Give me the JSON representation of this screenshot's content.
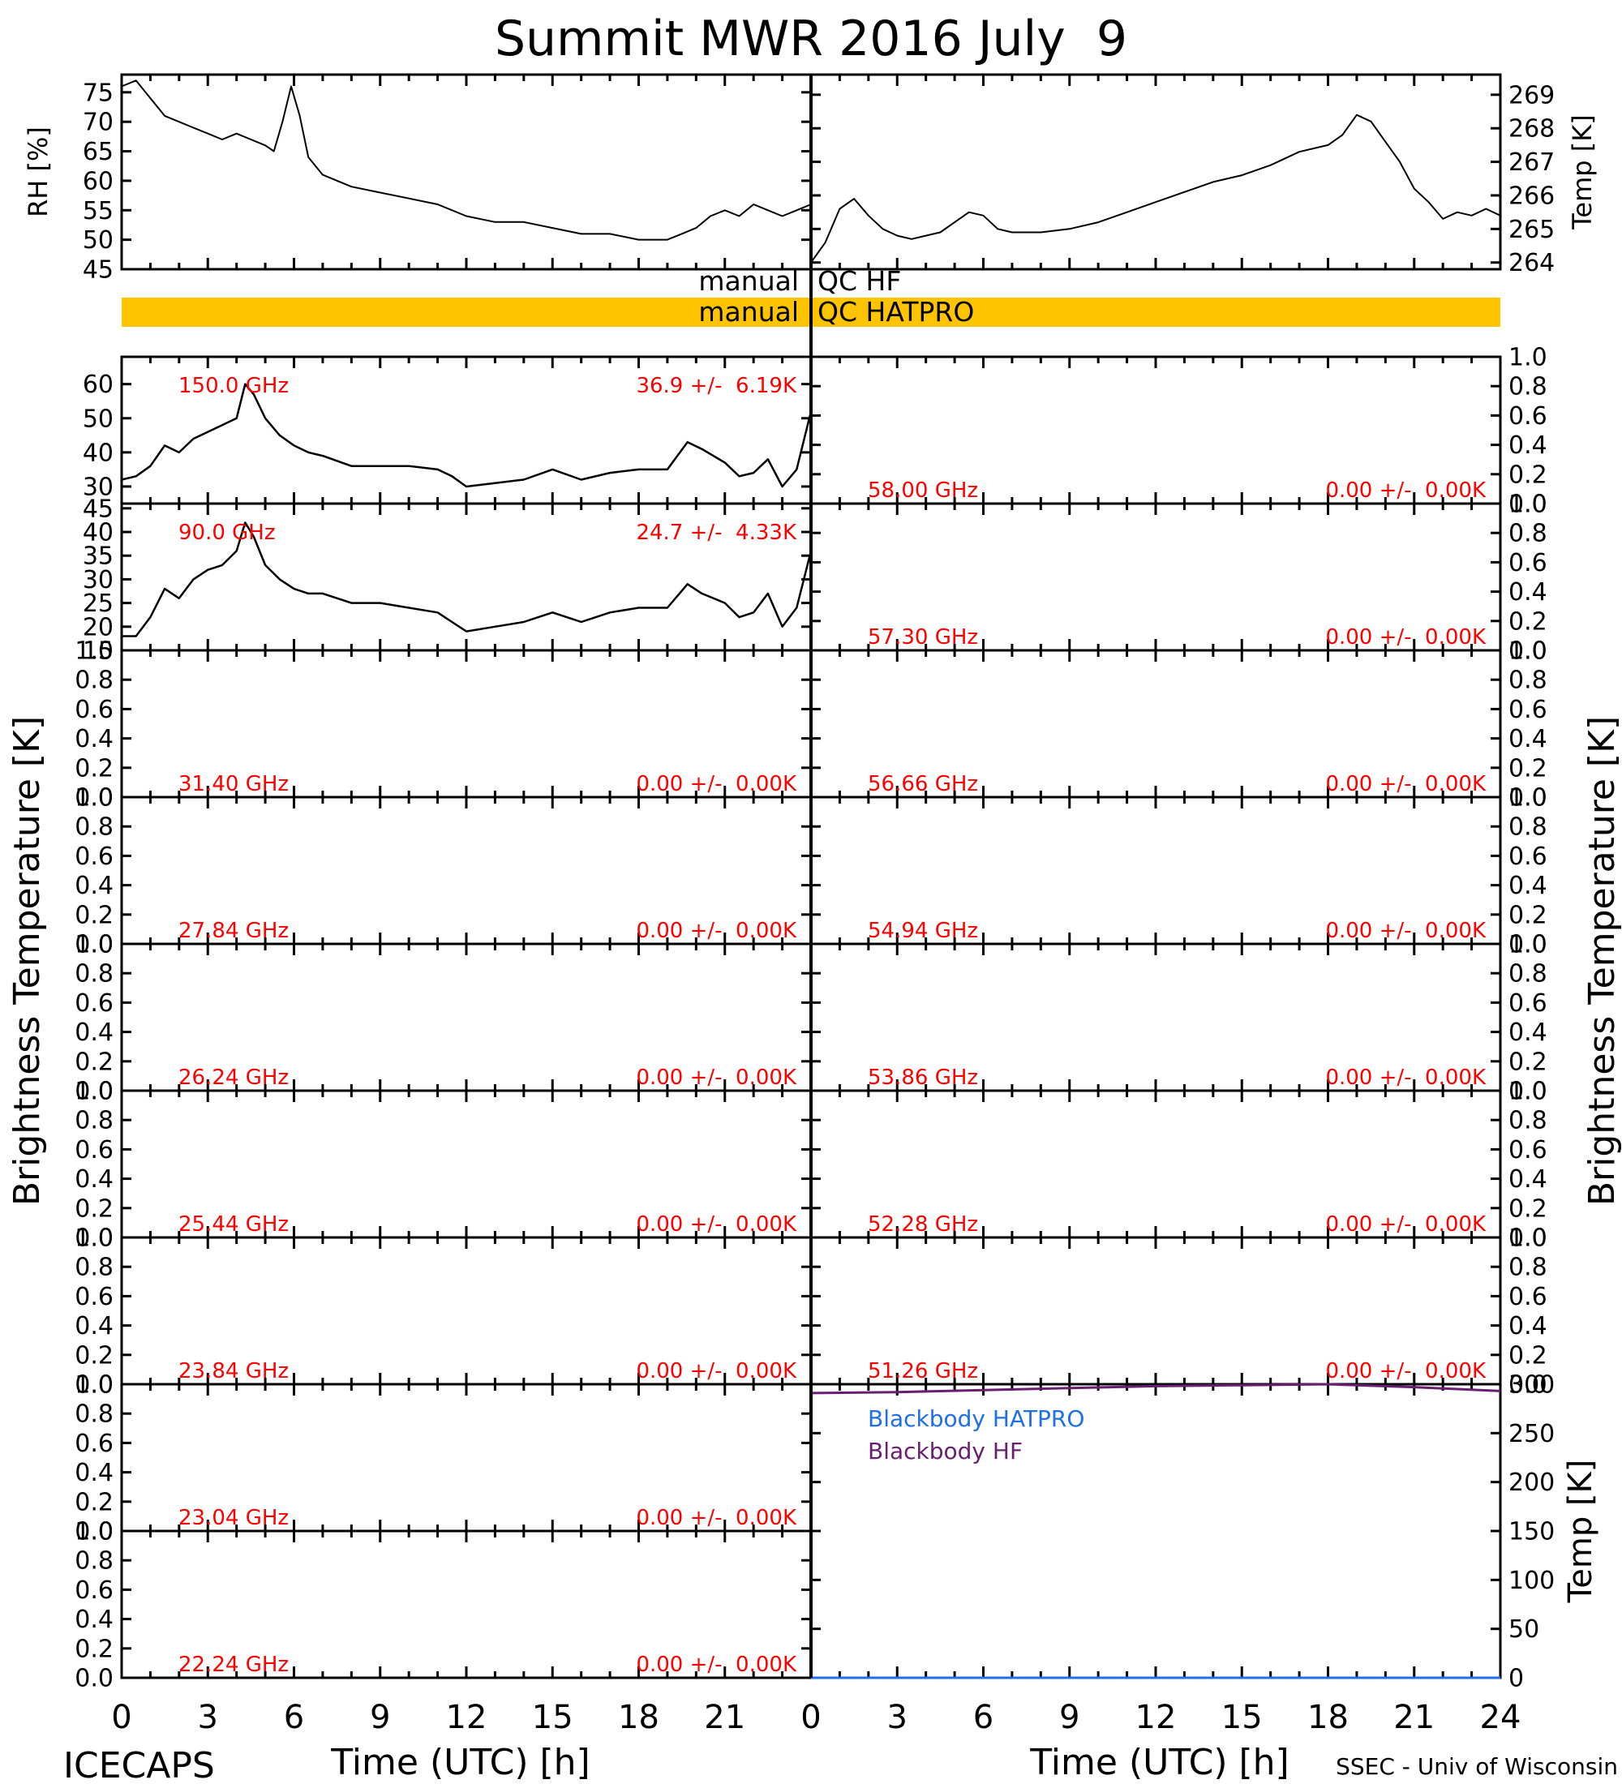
{
  "title": "Summit MWR 2016 July  9",
  "footer": {
    "left": "ICECAPS",
    "right": "SSEC - Univ of Wisconsin",
    "xlabel": "Time (UTC) [h]"
  },
  "colors": {
    "axis": "#000000",
    "trace": "#000000",
    "annotation_red": "#ff0000",
    "qc_bar": "#ffc400",
    "blackbody_hatpro": "#1e6fe8",
    "blackbody_hf": "#6a1e72"
  },
  "qc": {
    "hf_left": "manual",
    "hf_right": "QC HF",
    "hatpro_left": "manual",
    "hatpro_right": "QC HATPRO"
  },
  "side_labels": {
    "left": "Brightness Temperature [K]",
    "right": "Brightness Temperature [K]"
  },
  "chart_data": [
    {
      "type": "line",
      "id": "rh",
      "ylabel": "RH [%]",
      "xlim": [
        0,
        24
      ],
      "ylim": [
        45,
        78
      ],
      "yticks": [
        45,
        50,
        55,
        60,
        65,
        70,
        75
      ],
      "x": [
        0,
        0.5,
        1,
        1.5,
        2,
        2.5,
        3,
        3.5,
        4,
        4.5,
        5,
        5.3,
        5.6,
        5.9,
        6.2,
        6.5,
        7,
        8,
        9,
        10,
        11,
        12,
        13,
        14,
        15,
        16,
        17,
        18,
        18.5,
        19,
        19.5,
        20,
        20.5,
        21,
        21.5,
        22,
        22.5,
        23,
        23.5,
        24
      ],
      "y": [
        76,
        77,
        74,
        71,
        70,
        69,
        68,
        67,
        68,
        67,
        66,
        65,
        70,
        76,
        71,
        64,
        61,
        59,
        58,
        57,
        56,
        54,
        53,
        53,
        52,
        51,
        51,
        50,
        50,
        50,
        51,
        52,
        54,
        55,
        54,
        56,
        55,
        54,
        55,
        56
      ]
    },
    {
      "type": "line",
      "id": "temp",
      "ylabel": "Temp [K]",
      "xlim": [
        0,
        24
      ],
      "ylim": [
        263.8,
        269.6
      ],
      "yticks": [
        264,
        265,
        266,
        267,
        268,
        269
      ],
      "x": [
        0,
        0.5,
        1,
        1.5,
        2,
        2.5,
        3,
        3.5,
        4,
        4.5,
        5,
        5.5,
        6,
        6.5,
        7,
        8,
        9,
        10,
        11,
        12,
        13,
        14,
        15,
        16,
        17,
        18,
        18.5,
        19,
        19.5,
        20,
        20.5,
        21,
        21.5,
        22,
        22.5,
        23,
        23.5,
        24
      ],
      "y": [
        264.0,
        264.6,
        265.6,
        265.9,
        265.4,
        265.0,
        264.8,
        264.7,
        264.8,
        264.9,
        265.2,
        265.5,
        265.4,
        265.0,
        264.9,
        264.9,
        265.0,
        265.2,
        265.5,
        265.8,
        266.1,
        266.4,
        266.6,
        266.9,
        267.3,
        267.5,
        267.8,
        268.4,
        268.2,
        267.6,
        267.0,
        266.2,
        265.8,
        265.3,
        265.5,
        265.4,
        265.6,
        265.4
      ]
    },
    {
      "type": "line",
      "id": "bt-150",
      "channel": "150.0 GHz",
      "stats": "36.9 +/-  6.19K",
      "xlim": [
        0,
        24
      ],
      "ylim": [
        25,
        68
      ],
      "yticks": [
        30,
        40,
        50,
        60
      ],
      "x": [
        0,
        0.5,
        1,
        1.5,
        2,
        2.5,
        3,
        3.5,
        4,
        4.3,
        4.6,
        5,
        5.5,
        6,
        6.5,
        7,
        8,
        9,
        10,
        11,
        11.5,
        12,
        13,
        14,
        15,
        16,
        17,
        18,
        19,
        19.7,
        20.2,
        21,
        21.5,
        22,
        22.5,
        23,
        23.5,
        24
      ],
      "y": [
        32,
        33,
        36,
        42,
        40,
        44,
        46,
        48,
        50,
        60,
        57,
        50,
        45,
        42,
        40,
        39,
        36,
        36,
        36,
        35,
        33,
        30,
        31,
        32,
        35,
        32,
        34,
        35,
        35,
        43,
        41,
        37,
        33,
        34,
        38,
        30,
        35,
        52
      ]
    },
    {
      "type": "line",
      "id": "bt-90",
      "channel": "90.0 GHz",
      "stats": "24.7 +/-  4.33K",
      "xlim": [
        0,
        24
      ],
      "ylim": [
        15,
        46
      ],
      "yticks": [
        15,
        20,
        25,
        30,
        35,
        40,
        45
      ],
      "x": [
        0,
        0.5,
        1,
        1.5,
        2,
        2.5,
        3,
        3.5,
        4,
        4.3,
        4.6,
        5,
        5.5,
        6,
        6.5,
        7,
        8,
        9,
        10,
        11,
        11.5,
        12,
        13,
        14,
        15,
        16,
        17,
        18,
        19,
        19.7,
        20.2,
        21,
        21.5,
        22,
        22.5,
        23,
        23.5,
        24
      ],
      "y": [
        18,
        18,
        22,
        28,
        26,
        30,
        32,
        33,
        36,
        42,
        39,
        33,
        30,
        28,
        27,
        27,
        25,
        25,
        24,
        23,
        21,
        19,
        20,
        21,
        23,
        21,
        23,
        24,
        24,
        29,
        27,
        25,
        22,
        23,
        27,
        20,
        24,
        36
      ]
    },
    {
      "type": "line",
      "id": "bt-31.40",
      "channel": "31.40 GHz",
      "stats": "0.00 +/-  0.00K",
      "xlim": [
        0,
        24
      ],
      "ylim": [
        0,
        1
      ],
      "x": [],
      "y": []
    },
    {
      "type": "line",
      "id": "bt-27.84",
      "channel": "27.84 GHz",
      "stats": "0.00 +/-  0.00K",
      "xlim": [
        0,
        24
      ],
      "ylim": [
        0,
        1
      ],
      "x": [],
      "y": []
    },
    {
      "type": "line",
      "id": "bt-26.24",
      "channel": "26.24 GHz",
      "stats": "0.00 +/-  0.00K",
      "xlim": [
        0,
        24
      ],
      "ylim": [
        0,
        1
      ],
      "x": [],
      "y": []
    },
    {
      "type": "line",
      "id": "bt-25.44",
      "channel": "25.44 GHz",
      "stats": "0.00 +/-  0.00K",
      "xlim": [
        0,
        24
      ],
      "ylim": [
        0,
        1
      ],
      "x": [],
      "y": []
    },
    {
      "type": "line",
      "id": "bt-23.84",
      "channel": "23.84 GHz",
      "stats": "0.00 +/-  0.00K",
      "xlim": [
        0,
        24
      ],
      "ylim": [
        0,
        1
      ],
      "x": [],
      "y": []
    },
    {
      "type": "line",
      "id": "bt-23.04",
      "channel": "23.04 GHz",
      "stats": "0.00 +/-  0.00K",
      "xlim": [
        0,
        24
      ],
      "ylim": [
        0,
        1
      ],
      "x": [],
      "y": []
    },
    {
      "type": "line",
      "id": "bt-22.24",
      "channel": "22.24 GHz",
      "stats": "0.00 +/-  0.00K",
      "xlim": [
        0,
        24
      ],
      "ylim": [
        0,
        1
      ],
      "x": [],
      "y": []
    },
    {
      "type": "line",
      "id": "bt-58.00",
      "channel": "58.00 GHz",
      "stats": "0.00 +/-  0.00K",
      "xlim": [
        0,
        24
      ],
      "ylim": [
        0,
        1
      ],
      "x": [],
      "y": []
    },
    {
      "type": "line",
      "id": "bt-57.30",
      "channel": "57.30 GHz",
      "stats": "0.00 +/-  0.00K",
      "xlim": [
        0,
        24
      ],
      "ylim": [
        0,
        1
      ],
      "x": [],
      "y": []
    },
    {
      "type": "line",
      "id": "bt-56.66",
      "channel": "56.66 GHz",
      "stats": "0.00 +/-  0.00K",
      "xlim": [
        0,
        24
      ],
      "ylim": [
        0,
        1
      ],
      "x": [],
      "y": []
    },
    {
      "type": "line",
      "id": "bt-54.94",
      "channel": "54.94 GHz",
      "stats": "0.00 +/-  0.00K",
      "xlim": [
        0,
        24
      ],
      "ylim": [
        0,
        1
      ],
      "x": [],
      "y": []
    },
    {
      "type": "line",
      "id": "bt-53.86",
      "channel": "53.86 GHz",
      "stats": "0.00 +/-  0.00K",
      "xlim": [
        0,
        24
      ],
      "ylim": [
        0,
        1
      ],
      "x": [],
      "y": []
    },
    {
      "type": "line",
      "id": "bt-52.28",
      "channel": "52.28 GHz",
      "stats": "0.00 +/-  0.00K",
      "xlim": [
        0,
        24
      ],
      "ylim": [
        0,
        1
      ],
      "x": [],
      "y": []
    },
    {
      "type": "line",
      "id": "bt-51.26",
      "channel": "51.26 GHz",
      "stats": "0.00 +/-  0.00K",
      "xlim": [
        0,
        24
      ],
      "ylim": [
        0,
        1
      ],
      "x": [],
      "y": []
    },
    {
      "type": "line",
      "id": "blackbody",
      "ylabel": "Temp [K]",
      "xlim": [
        0,
        24
      ],
      "ylim": [
        0,
        300
      ],
      "yticks": [
        0,
        50,
        100,
        150,
        200,
        250,
        300
      ],
      "legend": [
        "Blackbody HATPRO",
        "Blackbody HF"
      ],
      "series": [
        {
          "name": "Blackbody HATPRO",
          "x": [
            0,
            24
          ],
          "y": [
            0,
            0
          ]
        },
        {
          "name": "Blackbody HF",
          "x": [
            0,
            3,
            6,
            9,
            12,
            15,
            18,
            21,
            24
          ],
          "y": [
            291,
            292,
            294,
            296,
            298,
            299,
            300,
            297,
            293
          ]
        }
      ]
    }
  ],
  "xaxis": {
    "left_ticks": [
      "0",
      "3",
      "6",
      "9",
      "12",
      "15",
      "18",
      "21"
    ],
    "right_ticks": [
      "0",
      "3",
      "6",
      "9",
      "12",
      "15",
      "18",
      "21",
      "24"
    ]
  }
}
